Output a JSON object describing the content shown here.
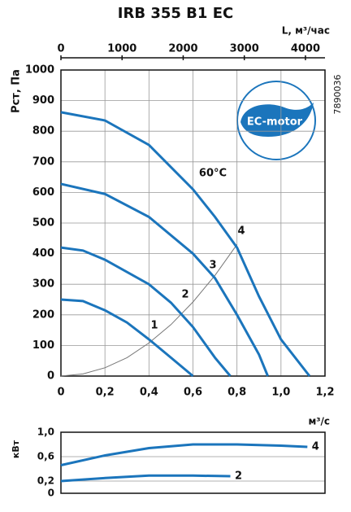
{
  "chart_data": [
    {
      "type": "line",
      "title": "IRB 355 B1 EC",
      "ylabel": "Рст, Па",
      "x2label": "L, м³/час",
      "xlabel": "м³/с",
      "code": "7890036",
      "badge": "EC-motor",
      "annotation": "60°C",
      "xlim": [
        0,
        1.2
      ],
      "xticks": [
        0,
        {
          "value": 0.2,
          "label": "0,2"
        },
        {
          "value": 0.4,
          "label": "0,4"
        },
        {
          "value": 0.6,
          "label": "0,6"
        },
        {
          "value": 0.8,
          "label": "0,8"
        },
        {
          "value": 1.0,
          "label": "1,0"
        },
        {
          "value": 1.2,
          "label": "1,2"
        }
      ],
      "x2lim": [
        0,
        4320
      ],
      "x2ticks": [
        0,
        1000,
        2000,
        3000,
        4000
      ],
      "ylim": [
        0,
        1000
      ],
      "yticks": [
        0,
        100,
        200,
        300,
        400,
        500,
        600,
        700,
        800,
        900,
        1000
      ],
      "grid": true,
      "series": [
        {
          "name": "1",
          "color": "#1b75bc",
          "x": [
            0,
            0.1,
            0.2,
            0.3,
            0.4,
            0.5,
            0.6
          ],
          "values": [
            250,
            245,
            215,
            175,
            120,
            60,
            0
          ]
        },
        {
          "name": "2",
          "color": "#1b75bc",
          "x": [
            0,
            0.1,
            0.2,
            0.4,
            0.5,
            0.6,
            0.7,
            0.77
          ],
          "values": [
            420,
            410,
            380,
            300,
            240,
            160,
            60,
            0
          ]
        },
        {
          "name": "3",
          "color": "#1b75bc",
          "x": [
            0,
            0.2,
            0.4,
            0.6,
            0.7,
            0.8,
            0.9,
            0.94
          ],
          "values": [
            628,
            595,
            520,
            400,
            320,
            200,
            70,
            0
          ]
        },
        {
          "name": "4",
          "color": "#1b75bc",
          "x": [
            0,
            0.2,
            0.4,
            0.6,
            0.7,
            0.8,
            0.9,
            1.0,
            1.13
          ],
          "values": [
            862,
            835,
            755,
            610,
            520,
            420,
            260,
            120,
            0
          ]
        }
      ],
      "system_curve": {
        "color": "#777777",
        "x": [
          0,
          0.1,
          0.2,
          0.3,
          0.4,
          0.5,
          0.6,
          0.7,
          0.8
        ],
        "values": [
          0,
          7,
          27,
          60,
          108,
          168,
          242,
          329,
          430
        ]
      }
    },
    {
      "type": "line",
      "ylabel": "кВт",
      "xlim": [
        0,
        1.2
      ],
      "ylim": [
        0,
        1.0
      ],
      "yticks": [
        0,
        {
          "value": 0.2,
          "label": "0,2"
        },
        {
          "value": 0.6,
          "label": "0,6"
        },
        {
          "value": 1.0,
          "label": "1,0"
        }
      ],
      "grid": true,
      "series": [
        {
          "name": "4",
          "color": "#1b75bc",
          "x": [
            0,
            0.2,
            0.4,
            0.6,
            0.8,
            1.0,
            1.12
          ],
          "values": [
            0.46,
            0.62,
            0.74,
            0.8,
            0.8,
            0.78,
            0.76
          ]
        },
        {
          "name": "2",
          "color": "#1b75bc",
          "x": [
            0,
            0.2,
            0.4,
            0.6,
            0.77
          ],
          "values": [
            0.2,
            0.25,
            0.29,
            0.29,
            0.28
          ]
        }
      ]
    }
  ]
}
